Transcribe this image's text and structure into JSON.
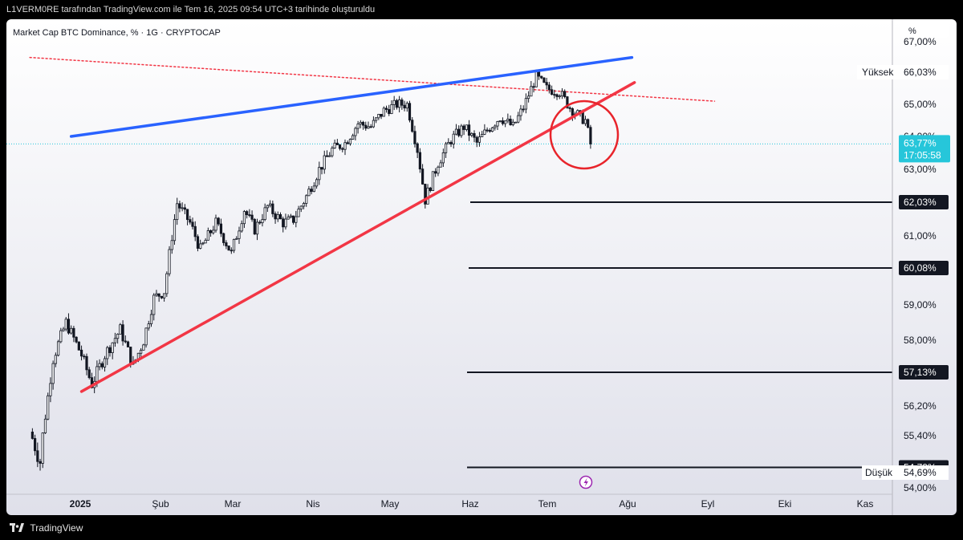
{
  "header": {
    "attribution": "L1VERM0RE tarafından TradingView.com ile Tem 16, 2025 09:54 UTC+3 tarihinde oluşturuldu"
  },
  "footer": {
    "brand": "TradingView"
  },
  "chart_data": {
    "type": "candlestick",
    "title": "Market Cap BTC Dominance, % · 1G · CRYPTOCAP",
    "unit_label": "%",
    "ylim": [
      54.0,
      67.0
    ],
    "y_ticks": [
      "54,00%",
      "54,69%",
      "55,40%",
      "56,20%",
      "57,13%",
      "58,00%",
      "59,00%",
      "60,08%",
      "61,00%",
      "62,03%",
      "63,00%",
      "64,00%",
      "65,00%",
      "66,03%",
      "67,00%"
    ],
    "x_labels": [
      "2025",
      "Şub",
      "Mar",
      "Nis",
      "May",
      "Haz",
      "Tem",
      "Ağu",
      "Eyl",
      "Eki",
      "Kas"
    ],
    "current": {
      "value": "63,77%",
      "countdown": "17:05:58"
    },
    "high": {
      "label": "Yüksek",
      "value": "66,03%"
    },
    "low": {
      "label": "Düşük",
      "value": "54,69%"
    },
    "horizontal_levels": [
      "62,03%",
      "60,08%",
      "57,13%",
      "54,79%"
    ],
    "trendlines": [
      {
        "color": "#2962ff",
        "style": "solid",
        "from": [
          "2024-12-26",
          64.0
        ],
        "to": [
          "2025-07-31",
          66.5
        ]
      },
      {
        "color": "#f23645",
        "style": "solid",
        "from": [
          "2024-12-30",
          56.6
        ],
        "to": [
          "2025-08-01",
          65.7
        ]
      },
      {
        "color": "#f23645",
        "style": "dotted",
        "from": [
          "2024-12-10",
          66.5
        ],
        "to": [
          "2025-09-01",
          65.1
        ]
      }
    ],
    "anchors": [
      [
        "2024-12-10",
        55.5
      ],
      [
        "2024-12-14",
        54.9
      ],
      [
        "2024-12-19",
        57.5
      ],
      [
        "2024-12-24",
        58.5
      ],
      [
        "2024-12-30",
        57.6
      ],
      [
        "2025-01-03",
        56.8
      ],
      [
        "2025-01-08",
        57.6
      ],
      [
        "2025-01-14",
        58.3
      ],
      [
        "2025-01-19",
        57.3
      ],
      [
        "2025-01-23",
        58.0
      ],
      [
        "2025-01-27",
        59.2
      ],
      [
        "2025-01-31",
        59.4
      ],
      [
        "2025-02-03",
        61.0
      ],
      [
        "2025-02-05",
        62.0
      ],
      [
        "2025-02-10",
        61.4
      ],
      [
        "2025-02-14",
        60.6
      ],
      [
        "2025-02-20",
        61.4
      ],
      [
        "2025-02-26",
        60.5
      ],
      [
        "2025-03-03",
        61.8
      ],
      [
        "2025-03-07",
        61.2
      ],
      [
        "2025-03-12",
        61.9
      ],
      [
        "2025-03-18",
        61.4
      ],
      [
        "2025-03-22",
        61.5
      ],
      [
        "2025-03-27",
        62.2
      ],
      [
        "2025-04-01",
        63.0
      ],
      [
        "2025-04-06",
        63.6
      ],
      [
        "2025-04-11",
        63.8
      ],
      [
        "2025-04-16",
        64.4
      ],
      [
        "2025-04-21",
        64.3
      ],
      [
        "2025-04-26",
        64.8
      ],
      [
        "2025-05-01",
        65.0
      ],
      [
        "2025-05-05",
        65.0
      ],
      [
        "2025-05-09",
        63.6
      ],
      [
        "2025-05-12",
        62.1
      ],
      [
        "2025-05-17",
        63.2
      ],
      [
        "2025-05-22",
        63.9
      ],
      [
        "2025-05-27",
        64.3
      ],
      [
        "2025-06-01",
        63.8
      ],
      [
        "2025-06-05",
        64.2
      ],
      [
        "2025-06-10",
        64.6
      ],
      [
        "2025-06-15",
        64.3
      ],
      [
        "2025-06-19",
        64.9
      ],
      [
        "2025-06-24",
        65.9
      ],
      [
        "2025-06-28",
        65.5
      ],
      [
        "2025-07-03",
        65.4
      ],
      [
        "2025-07-07",
        64.9
      ],
      [
        "2025-07-11",
        64.6
      ],
      [
        "2025-07-13",
        64.5
      ],
      [
        "2025-07-15",
        63.77
      ]
    ]
  }
}
